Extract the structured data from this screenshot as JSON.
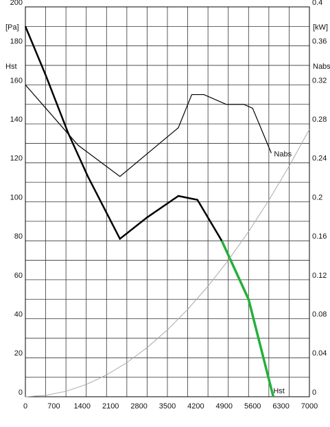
{
  "chart_data": {
    "type": "line",
    "y_unit": "[Pa]",
    "y_label": "Hst",
    "y2_unit": "[kW]",
    "y2_label": "Nabs",
    "xlim": [
      0,
      7000
    ],
    "xticks": [
      0,
      700,
      1400,
      2100,
      2800,
      3500,
      4200,
      4900,
      5600,
      6300,
      7000
    ],
    "ylim": [
      0,
      200
    ],
    "yticks": [
      0,
      20,
      40,
      60,
      80,
      100,
      120,
      140,
      160,
      180,
      200
    ],
    "y2lim": [
      0,
      0.4
    ],
    "y2ticks": [
      0,
      0.04,
      0.08,
      0.12,
      0.16,
      0.2,
      0.24,
      0.28,
      0.32,
      0.36,
      0.4
    ],
    "grid": true,
    "xgrid": [
      500,
      1000,
      1500,
      2000,
      2500,
      3000,
      3500,
      4000,
      4500,
      5000,
      5500,
      6000,
      6500
    ],
    "ygrid": [
      10,
      20,
      30,
      40,
      50,
      60,
      70,
      80,
      90,
      100,
      110,
      120,
      130,
      140,
      150,
      160,
      170,
      180,
      190
    ],
    "series": [
      {
        "name": "Hst",
        "color": "#000000",
        "x": [
          0,
          500,
          1060,
          1540,
          2330,
          3000,
          3770,
          4240,
          4840
        ],
        "values": [
          190,
          165,
          135,
          113,
          81,
          92,
          103,
          101,
          80
        ]
      },
      {
        "color": "#22b03a",
        "x": [
          4840,
          5500,
          6110
        ],
        "values": [
          80,
          50,
          0
        ]
      },
      {
        "name": "Nabs",
        "color": "#000000",
        "axis": "y2",
        "x": [
          0,
          1300,
          2330,
          3770,
          4100,
          4400,
          4950,
          5380,
          5600,
          6060
        ],
        "values": [
          0.32,
          0.258,
          0.226,
          0.276,
          0.31,
          0.31,
          0.3,
          0.3,
          0.296,
          0.25
        ]
      },
      {
        "color": "#aaaaaa",
        "x": [
          0,
          500,
          1000,
          1500,
          2000,
          2500,
          3000,
          3500,
          4000,
          4500,
          5000,
          5500,
          6000,
          6500,
          7000
        ],
        "values": [
          0,
          0.7,
          2.8,
          6.3,
          11.2,
          17.5,
          25.2,
          34.3,
          44.8,
          56.7,
          70,
          84.7,
          100.8,
          118.3,
          137.2
        ]
      }
    ]
  }
}
